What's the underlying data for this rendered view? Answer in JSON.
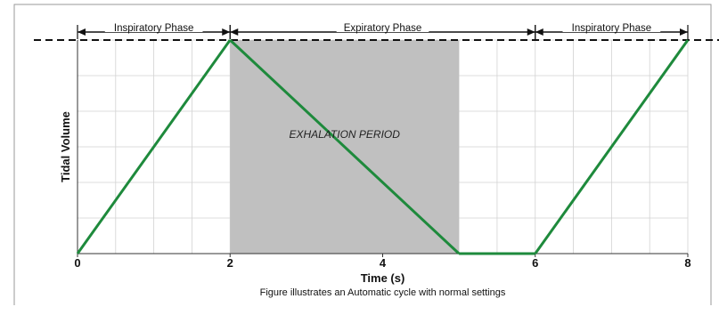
{
  "chart_data": {
    "type": "line",
    "xlabel": "Time (s)",
    "ylabel": "Tidal Volume",
    "caption": "Figure illustrates an Automatic cycle with normal settings",
    "xlim": [
      0,
      8
    ],
    "ylim": [
      0,
      1
    ],
    "x_ticks": [
      "0",
      "2",
      "4",
      "6",
      "8"
    ],
    "grid": true,
    "series": [
      {
        "color": "#1e8a3c",
        "points": [
          [
            0,
            0
          ],
          [
            2,
            1
          ],
          [
            5,
            0
          ],
          [
            6,
            0
          ],
          [
            8,
            1
          ]
        ]
      }
    ],
    "reference_line": {
      "y": 1,
      "style": "dashed"
    },
    "shaded_region": {
      "x": [
        2,
        5
      ],
      "label": "EXHALATION PERIOD",
      "color": "#c0c0c0"
    },
    "phases": [
      {
        "label": "Inspiratory Phase",
        "x": [
          0,
          2
        ]
      },
      {
        "label": "Expiratory Phase",
        "x": [
          2,
          6
        ]
      },
      {
        "label": "Inspiratory Phase",
        "x": [
          6,
          8
        ]
      }
    ]
  }
}
